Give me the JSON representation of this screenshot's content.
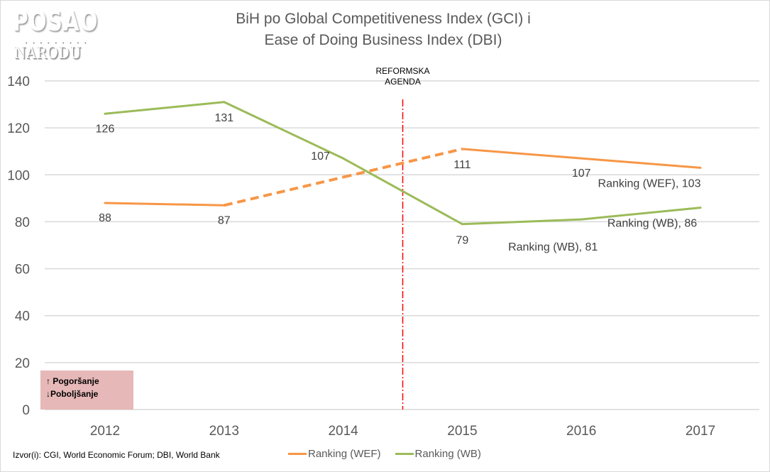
{
  "logo": {
    "line1": "POSAO",
    "dots": "• • • • • • • • •",
    "line2": "NARODU"
  },
  "chart_data": {
    "type": "line",
    "title": "BiH po Global Competitiveness Index (GCI) i Ease of Doing Business Index (DBI)",
    "title_lines": [
      "BiH po Global Competitiveness Index (GCI) i",
      "Ease of Doing Business Index (DBI)"
    ],
    "xlabel": "",
    "ylabel": "",
    "categories": [
      "2012",
      "2013",
      "2014",
      "2015",
      "2016",
      "2017"
    ],
    "ylim": [
      0,
      140
    ],
    "yticks": [
      0,
      20,
      40,
      60,
      80,
      100,
      120,
      140
    ],
    "ytick_labels": [
      "0",
      "20",
      "40",
      "60",
      "80",
      "100",
      "120",
      "140"
    ],
    "grid": true,
    "legend_position": "bottom",
    "series": [
      {
        "name": "Ranking (WEF)",
        "color": "#f79646",
        "values": [
          88,
          87,
          99,
          111,
          107,
          103
        ],
        "dashed_segments": [
          [
            1,
            3
          ]
        ],
        "data_labels": [
          "88",
          "87",
          null,
          "111",
          "107",
          "Ranking (WEF), 103"
        ]
      },
      {
        "name": "Ranking (WB)",
        "color": "#9bbb59",
        "values": [
          126,
          131,
          107,
          79,
          81,
          86
        ],
        "data_labels": [
          "126",
          "131",
          "107",
          "79",
          "Ranking (WB), 81",
          "Ranking (WB), 86"
        ]
      }
    ],
    "annotations": [
      {
        "type": "vertical-line",
        "x": 2014.5,
        "color": "#ff0000",
        "style": "dash-dot",
        "label": [
          "REFORMSKA",
          "AGENDA"
        ]
      }
    ]
  },
  "note": {
    "line1": "↑ Pogoršanje",
    "line2": "↓Poboljšanje"
  },
  "source": "Izvor(i): CGI, World Economic Forum; DBI, World Bank",
  "legend": [
    {
      "label": "Ranking (WEF)",
      "color": "#f79646"
    },
    {
      "label": "Ranking (WB)",
      "color": "#9bbb59"
    }
  ]
}
